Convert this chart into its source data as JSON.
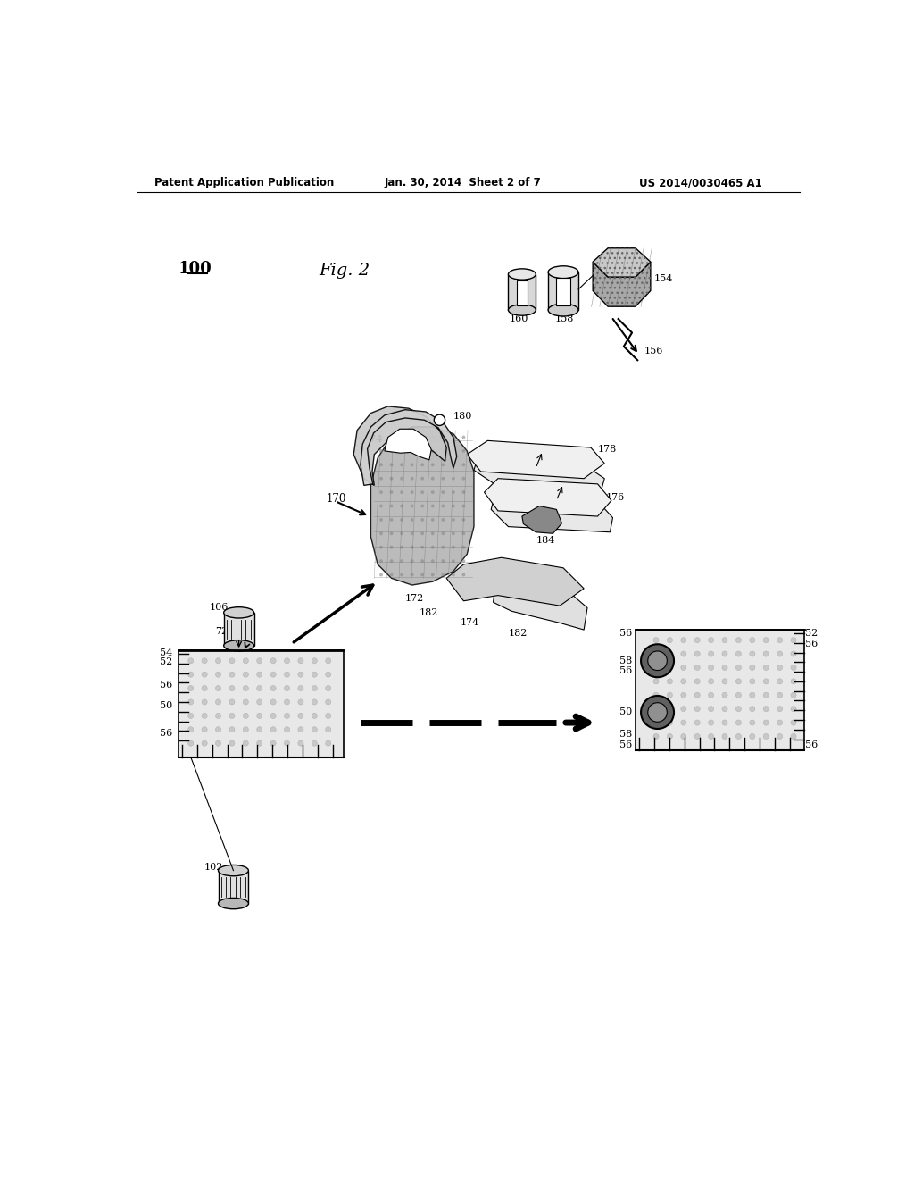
{
  "bg_color": "#ffffff",
  "header_left": "Patent Application Publication",
  "header_mid": "Jan. 30, 2014  Sheet 2 of 7",
  "header_right": "US 2014/0030465 A1",
  "fig_label": "Fig. 2",
  "ref_100": "100"
}
